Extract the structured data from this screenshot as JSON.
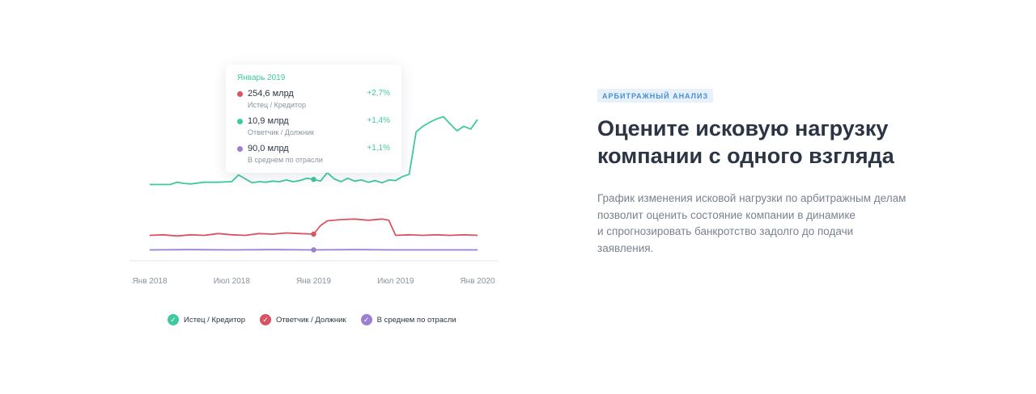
{
  "chart_data": {
    "type": "line",
    "x_ticks": [
      "Янв 2018",
      "Июл 2018",
      "Янв 2019",
      "Июл 2019",
      "Янв 2020"
    ],
    "x_range": [
      0,
      24
    ],
    "series": [
      {
        "name": "Истец / Кредитор",
        "color": "#3ec9a0",
        "points": [
          [
            0,
            0.5
          ],
          [
            1.5,
            0.5
          ],
          [
            2,
            0.9
          ],
          [
            2.5,
            0.7
          ],
          [
            3,
            0.6
          ],
          [
            4,
            0.9
          ],
          [
            5,
            0.9
          ],
          [
            6,
            1.0
          ],
          [
            6.5,
            2.2
          ],
          [
            7,
            1.5
          ],
          [
            7.5,
            0.8
          ],
          [
            8,
            1.0
          ],
          [
            8.5,
            0.9
          ],
          [
            9,
            1.1
          ],
          [
            9.5,
            1.0
          ],
          [
            10,
            1.3
          ],
          [
            10.5,
            1.0
          ],
          [
            11,
            1.2
          ],
          [
            11.5,
            1.6
          ],
          [
            12,
            1.4
          ],
          [
            12.5,
            1.1
          ],
          [
            13,
            2.6
          ],
          [
            13.5,
            1.5
          ],
          [
            14,
            1.0
          ],
          [
            14.5,
            1.6
          ],
          [
            15,
            1.1
          ],
          [
            15.5,
            1.3
          ],
          [
            16,
            0.9
          ],
          [
            16.5,
            1.2
          ],
          [
            17,
            0.8
          ],
          [
            17.5,
            1.3
          ],
          [
            18,
            1.2
          ],
          [
            18.5,
            1.9
          ],
          [
            19,
            2.3
          ],
          [
            19.5,
            9.8
          ],
          [
            20,
            10.8
          ],
          [
            20.5,
            11.5
          ],
          [
            21,
            12.1
          ],
          [
            21.5,
            12.5
          ],
          [
            22,
            11.2
          ],
          [
            22.5,
            10.0
          ],
          [
            23,
            10.8
          ],
          [
            23.5,
            10.3
          ],
          [
            24,
            12.0
          ]
        ]
      },
      {
        "name": "Ответчик / Должник",
        "color": "#d95462",
        "points": [
          [
            0,
            0.6
          ],
          [
            1,
            0.7
          ],
          [
            2,
            0.5
          ],
          [
            3,
            0.7
          ],
          [
            4,
            0.6
          ],
          [
            5,
            0.9
          ],
          [
            6,
            0.7
          ],
          [
            7,
            0.6
          ],
          [
            8,
            0.9
          ],
          [
            9,
            0.8
          ],
          [
            10,
            1.0
          ],
          [
            11,
            0.9
          ],
          [
            12,
            0.8
          ],
          [
            12.5,
            2.2
          ],
          [
            13,
            3.0
          ],
          [
            14,
            3.2
          ],
          [
            15,
            3.3
          ],
          [
            16,
            3.1
          ],
          [
            17,
            3.3
          ],
          [
            17.5,
            3.1
          ],
          [
            18,
            0.6
          ],
          [
            19,
            0.7
          ],
          [
            20,
            0.6
          ],
          [
            21,
            0.7
          ],
          [
            22,
            0.6
          ],
          [
            23,
            0.7
          ],
          [
            24,
            0.6
          ]
        ]
      },
      {
        "name": "В среднем по отрасли",
        "color": "#9b7fd1",
        "points": [
          [
            0,
            0.5
          ],
          [
            3,
            0.6
          ],
          [
            6,
            0.5
          ],
          [
            9,
            0.6
          ],
          [
            12,
            0.5
          ],
          [
            15,
            0.6
          ],
          [
            18,
            0.5
          ],
          [
            21,
            0.5
          ],
          [
            24,
            0.5
          ]
        ]
      }
    ],
    "tooltip": {
      "title": "Январь 2019",
      "rows": [
        {
          "value": "254,6 млрд",
          "sub": "Истец / Кредитор",
          "change": "+2,7%",
          "color": "#d95462"
        },
        {
          "value": "10,9 млрд",
          "sub": "Ответчик / Должник",
          "change": "+1,4%",
          "color": "#3ec9a0"
        },
        {
          "value": "90,0 млрд",
          "sub": "В среднем по отрасли",
          "change": "+1,1%",
          "color": "#9b7fd1"
        }
      ]
    },
    "highlight_x": 12
  },
  "legend": [
    {
      "label": "Истец / Кредитор",
      "color": "#3ec9a0"
    },
    {
      "label": "Ответчик / Должник",
      "color": "#d95462"
    },
    {
      "label": "В среднем по отрасли",
      "color": "#9b7fd1"
    }
  ],
  "text": {
    "badge": "АРБИТРАЖНЫЙ АНАЛИЗ",
    "heading_line1": "Оцените исковую нагрузку",
    "heading_line2": "компании с одного взгляда",
    "desc_line1": "График изменения исковой нагрузки по арбитражным делам",
    "desc_line2": "позволит оценить состояние компании в динамике",
    "desc_line3": "и спрогнозировать банкротство задолго до подачи",
    "desc_line4": "заявления."
  }
}
